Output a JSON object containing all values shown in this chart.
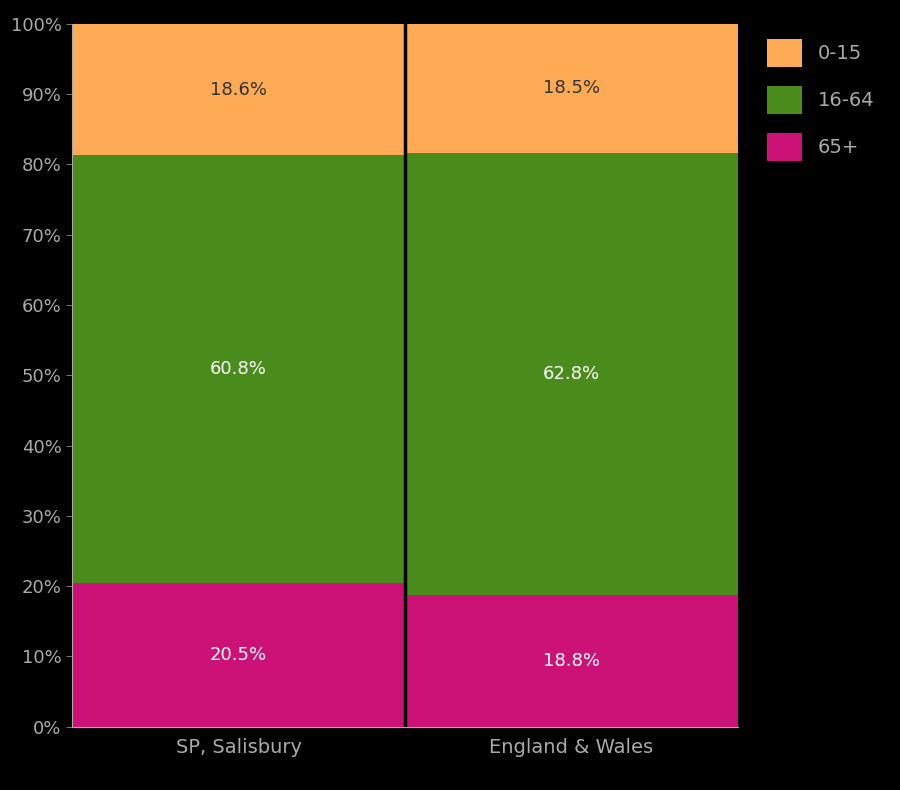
{
  "categories": [
    "SP, Salisbury",
    "England & Wales"
  ],
  "segments": {
    "65+": [
      20.5,
      18.8
    ],
    "16-64": [
      60.8,
      62.8
    ],
    "0-15": [
      18.6,
      18.5
    ]
  },
  "colors": {
    "65+": "#CC1177",
    "16-64": "#4A8C1C",
    "0-15": "#FFAA55"
  },
  "segment_order": [
    "65+",
    "16-64",
    "0-15"
  ],
  "label_colors": {
    "65+": "white",
    "16-64": "white",
    "0-15": "#333333"
  },
  "background_color": "#000000",
  "tick_color": "#AAAAAA",
  "legend_labels": [
    "0-15",
    "16-64",
    "65+"
  ],
  "legend_colors": [
    "#FFAA55",
    "#4A8C1C",
    "#CC1177"
  ],
  "figsize": [
    9.0,
    7.9
  ],
  "dpi": 100
}
